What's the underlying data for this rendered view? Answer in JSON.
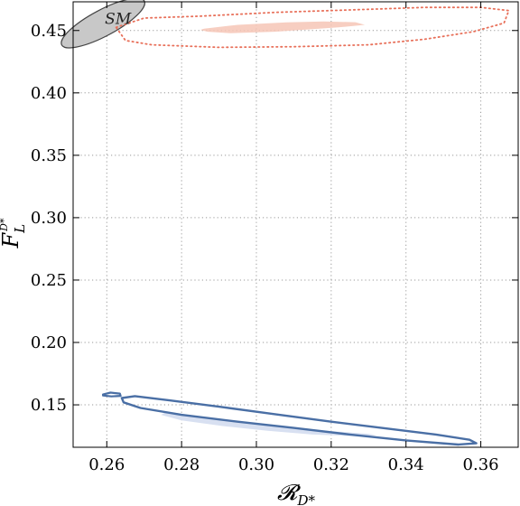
{
  "chart_data": {
    "type": "contour",
    "xlabel": "𝓡",
    "xlabel_sub": "D*",
    "ylabel": "F",
    "ylabel_sub": "L",
    "ylabel_sup": "D*",
    "xlim": [
      0.251,
      0.37
    ],
    "ylim": [
      0.116,
      0.473
    ],
    "xticks": [
      "0.26",
      "0.28",
      "0.30",
      "0.32",
      "0.34",
      "0.36"
    ],
    "yticks": [
      "0.15",
      "0.20",
      "0.25",
      "0.30",
      "0.35",
      "0.40",
      "0.45"
    ],
    "grid": true,
    "grid_style": "dotted",
    "annotations": [
      {
        "text": "SM",
        "x": 0.263,
        "y": 0.4595
      }
    ],
    "regions": [
      {
        "kind": "filled-ellipse",
        "cx": 0.259,
        "cy": 0.456,
        "rx": 0.0125,
        "ry": 0.0105,
        "rotate_deg": -28,
        "fill": "#c8c8c8",
        "stroke": "#444444",
        "stroke_width": 1.2,
        "dash": ""
      },
      {
        "kind": "filled-polygon",
        "fill": "#f6c5b6",
        "opacity": 0.85,
        "stroke": "none",
        "stroke_width": 0,
        "dash": "",
        "points": [
          [
            0.286,
            0.4515
          ],
          [
            0.295,
            0.4545
          ],
          [
            0.308,
            0.4565
          ],
          [
            0.318,
            0.4572
          ],
          [
            0.3265,
            0.4566
          ],
          [
            0.329,
            0.4545
          ],
          [
            0.322,
            0.4525
          ],
          [
            0.305,
            0.449
          ],
          [
            0.293,
            0.4478
          ],
          [
            0.287,
            0.449
          ],
          [
            0.285,
            0.4505
          ]
        ]
      },
      {
        "kind": "outline-polygon",
        "fill": "none",
        "opacity": 1,
        "stroke": "#e8705a",
        "stroke_width": 1.8,
        "dash": "1.4 3.6",
        "points": [
          [
            0.2625,
            0.4525
          ],
          [
            0.27,
            0.46
          ],
          [
            0.285,
            0.4615
          ],
          [
            0.305,
            0.4645
          ],
          [
            0.325,
            0.4665
          ],
          [
            0.345,
            0.4685
          ],
          [
            0.36,
            0.4685
          ],
          [
            0.3675,
            0.466
          ],
          [
            0.3662,
            0.456
          ],
          [
            0.358,
            0.449
          ],
          [
            0.345,
            0.443
          ],
          [
            0.33,
            0.4385
          ],
          [
            0.31,
            0.437
          ],
          [
            0.29,
            0.4365
          ],
          [
            0.272,
            0.4385
          ],
          [
            0.265,
            0.442
          ]
        ]
      },
      {
        "kind": "filled-polygon",
        "fill": "#d6def0",
        "opacity": 0.95,
        "stroke": "none",
        "stroke_width": 0,
        "dash": "",
        "points": [
          [
            0.276,
            0.1445
          ],
          [
            0.288,
            0.139
          ],
          [
            0.3,
            0.1345
          ],
          [
            0.312,
            0.131
          ],
          [
            0.322,
            0.1285
          ],
          [
            0.33,
            0.1268
          ],
          [
            0.332,
            0.1258
          ],
          [
            0.327,
            0.1248
          ],
          [
            0.315,
            0.1262
          ],
          [
            0.303,
            0.1292
          ],
          [
            0.291,
            0.133
          ],
          [
            0.28,
            0.1375
          ],
          [
            0.2745,
            0.142
          ]
        ]
      },
      {
        "kind": "outline-polygon",
        "fill": "none",
        "opacity": 1,
        "stroke": "#4a6fa5",
        "stroke_width": 2.4,
        "dash": "",
        "points": [
          [
            0.264,
            0.1555
          ],
          [
            0.2675,
            0.157
          ],
          [
            0.277,
            0.1535
          ],
          [
            0.29,
            0.1485
          ],
          [
            0.305,
            0.1425
          ],
          [
            0.32,
            0.1365
          ],
          [
            0.335,
            0.131
          ],
          [
            0.348,
            0.1262
          ],
          [
            0.357,
            0.122
          ],
          [
            0.3588,
            0.1192
          ],
          [
            0.354,
            0.1182
          ],
          [
            0.34,
            0.1215
          ],
          [
            0.325,
            0.1262
          ],
          [
            0.31,
            0.1315
          ],
          [
            0.295,
            0.1365
          ],
          [
            0.28,
            0.142
          ],
          [
            0.269,
            0.1475
          ],
          [
            0.2645,
            0.152
          ]
        ]
      },
      {
        "kind": "outline-polygon",
        "fill": "none",
        "opacity": 1,
        "stroke": "#4a6fa5",
        "stroke_width": 2.2,
        "dash": "",
        "points": [
          [
            0.259,
            0.1583
          ],
          [
            0.261,
            0.1598
          ],
          [
            0.2635,
            0.159
          ],
          [
            0.2637,
            0.1572
          ],
          [
            0.2612,
            0.1568
          ],
          [
            0.259,
            0.1575
          ]
        ]
      }
    ]
  }
}
